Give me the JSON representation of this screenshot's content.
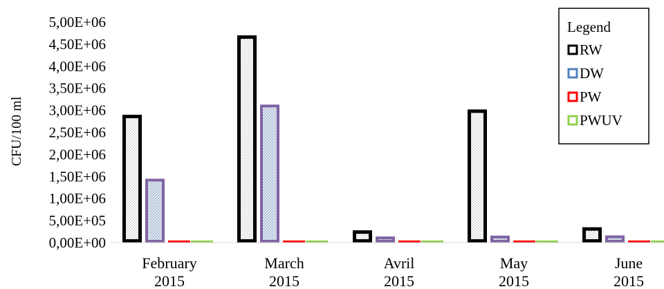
{
  "chart_data": {
    "type": "bar",
    "ylabel": "CFU/100 ml",
    "ylim": [
      0,
      5000000
    ],
    "yticks": [
      "0,00E+00",
      "5,00E+05",
      "1,00E+06",
      "1,50E+06",
      "2,00E+06",
      "2,50E+06",
      "3,00E+06",
      "3,50E+06",
      "4,00E+06",
      "4,50E+06",
      "5,00E+06"
    ],
    "categories": [
      [
        "February",
        "2015"
      ],
      [
        "March",
        "2015"
      ],
      [
        "Avril",
        "2015"
      ],
      [
        "May",
        "2015"
      ],
      [
        "June",
        "2015"
      ]
    ],
    "legend": {
      "title": "Legend",
      "position": "top-right"
    },
    "series": [
      {
        "name": "RW",
        "values": [
          2900000,
          4700000,
          280000,
          3020000,
          350000
        ],
        "fill": "#ffffff",
        "stroke": "#000000",
        "pattern": "dots"
      },
      {
        "name": "DW",
        "values": [
          1450000,
          3130000,
          140000,
          160000,
          165000
        ],
        "fill": "#dfe6f2",
        "stroke": "#8064a2",
        "pattern": "hatch"
      },
      {
        "name": "PW",
        "values": [
          50000,
          50000,
          50000,
          50000,
          50000
        ],
        "fill": "#ff0000",
        "stroke": "#ff0000",
        "pattern": "solid"
      },
      {
        "name": "PWUV",
        "values": [
          50000,
          50000,
          50000,
          50000,
          50000
        ],
        "fill": "#92d050",
        "stroke": "#92d050",
        "pattern": "solid"
      }
    ],
    "legend_swatch_colors": [
      "#000000",
      "#4f81bd",
      "#ff0000",
      "#92d050"
    ],
    "grid": false
  }
}
